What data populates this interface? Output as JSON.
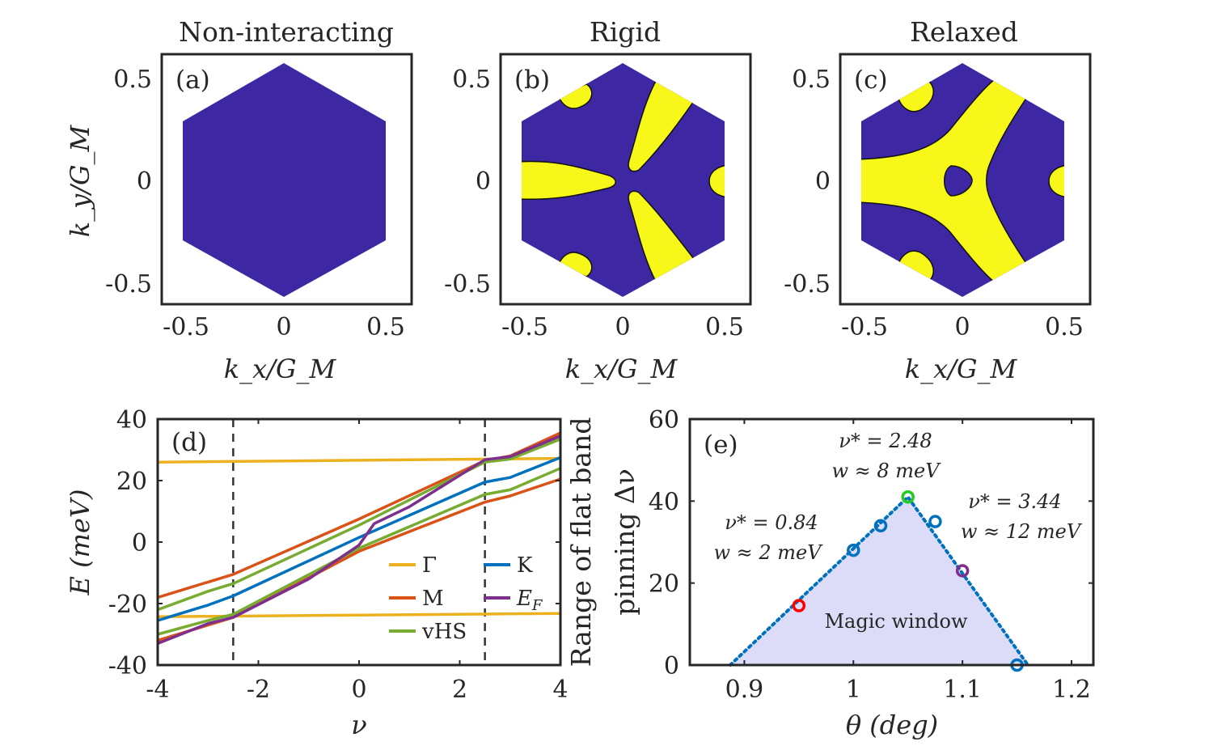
{
  "figure": {
    "panels_top": [
      {
        "id": "a",
        "title": "Non-interacting",
        "label": "(a)"
      },
      {
        "id": "b",
        "title": "Rigid",
        "label": "(b)"
      },
      {
        "id": "c",
        "title": "Relaxed",
        "label": "(c)"
      }
    ],
    "top_axes": {
      "ylabel": "k_y/G_M",
      "xlabel": "k_x/G_M",
      "xticks": [
        "-0.5",
        "0",
        "0.5"
      ],
      "yticks": [
        "0.5",
        "0",
        "-0.5"
      ],
      "fill_colors": {
        "region": "#3d27a3",
        "pocket": "#f7f71a"
      }
    }
  },
  "chart_data": [
    {
      "panel": "d",
      "label": "(d)",
      "type": "line",
      "xlabel": "ν",
      "ylabel": "E (meV)",
      "xlim": [
        -4,
        4
      ],
      "ylim": [
        -40,
        40
      ],
      "xticks": [
        "-4",
        "-2",
        "0",
        "2",
        "4"
      ],
      "yticks": [
        "40",
        "20",
        "0",
        "-20",
        "-40"
      ],
      "vlines": [
        -2.5,
        2.5
      ],
      "series": [
        {
          "name": "Γ",
          "color": "#edb120",
          "x": [
            -4,
            4
          ],
          "y": [
            26,
            27.2
          ]
        },
        {
          "name": "Γ",
          "color": "#edb120",
          "x": [
            -4,
            4
          ],
          "y": [
            -24.3,
            -23.2
          ]
        },
        {
          "name": "M",
          "color": "#d95319",
          "x": [
            -4,
            -3,
            -2.5,
            0,
            2.5,
            3,
            4
          ],
          "y": [
            -18,
            -13,
            -10.5,
            7.5,
            26.5,
            28,
            35.5
          ]
        },
        {
          "name": "M",
          "color": "#d95319",
          "x": [
            -4,
            -3,
            -2.5,
            0,
            2.5,
            3,
            4
          ],
          "y": [
            -32,
            -27,
            -24.5,
            -3,
            13,
            15,
            20.5
          ]
        },
        {
          "name": "vHS",
          "color": "#77ac30",
          "x": [
            -4,
            -3,
            -2.5,
            0,
            2.5,
            3,
            4
          ],
          "y": [
            -22,
            -16,
            -13.5,
            5.5,
            26,
            27,
            33.5
          ]
        },
        {
          "name": "vHS",
          "color": "#77ac30",
          "x": [
            -4,
            -3,
            -2.5,
            0,
            2.5,
            3,
            4
          ],
          "y": [
            -30,
            -25.5,
            -23.5,
            -2,
            15.5,
            17,
            24
          ]
        },
        {
          "name": "K",
          "color": "#0072bd",
          "x": [
            -4,
            -3,
            -2.5,
            0,
            2.5,
            3,
            4
          ],
          "y": [
            -25.5,
            -20.5,
            -17.5,
            1.5,
            19.5,
            21,
            27.5
          ]
        },
        {
          "name": "E_F",
          "color": "#7e2f8e",
          "x": [
            -4,
            -3,
            -2.5,
            -1,
            0,
            0.3,
            1,
            2.5,
            3,
            4
          ],
          "y": [
            -33,
            -26.5,
            -24.5,
            -12,
            -1,
            6,
            11.5,
            26.8,
            27.8,
            34.5
          ]
        }
      ],
      "legend": [
        {
          "name": "Γ",
          "color": "#edb120"
        },
        {
          "name": "K",
          "color": "#0072bd"
        },
        {
          "name": "M",
          "color": "#d95319"
        },
        {
          "name": "E",
          "sub": "F",
          "color": "#7e2f8e"
        },
        {
          "name": "vHS",
          "color": "#77ac30"
        }
      ]
    },
    {
      "panel": "e",
      "label": "(e)",
      "type": "scatter",
      "xlabel": "θ (deg)",
      "ylabel_line1": "Range of flat band",
      "ylabel_line2": "pinning Δν",
      "xlim": [
        0.85,
        1.22
      ],
      "ylim": [
        0,
        60
      ],
      "xticks": [
        "0.9",
        "1",
        "1.1",
        "1.2"
      ],
      "yticks": [
        "60",
        "40",
        "20",
        "0"
      ],
      "points": [
        {
          "x": 0.95,
          "y": 14.5,
          "color": "#ff0000"
        },
        {
          "x": 1.0,
          "y": 28,
          "color": "#0072bd"
        },
        {
          "x": 1.025,
          "y": 34,
          "color": "#0072bd"
        },
        {
          "x": 1.05,
          "y": 41,
          "color": "#22cc22"
        },
        {
          "x": 1.075,
          "y": 35,
          "color": "#0072bd"
        },
        {
          "x": 1.1,
          "y": 23,
          "color": "#7e2f8e"
        },
        {
          "x": 1.15,
          "y": 0,
          "color": "#0072bd"
        }
      ],
      "window": [
        [
          0.887,
          0
        ],
        [
          1.05,
          41
        ],
        [
          1.16,
          0
        ]
      ],
      "window_fill": "#dcdcf8",
      "window_line": "#0072bd",
      "window_label": "Magic window",
      "window_label_color": "#1a1aff",
      "annotations": [
        {
          "line1": "ν* = 2.48",
          "line2": "w ≈ 8 meV",
          "color": "#22cc22"
        },
        {
          "line1": "ν* = 0.84",
          "line2": "w ≈ 2 meV",
          "color": "#ff0000"
        },
        {
          "line1": "ν* = 3.44",
          "line2": "w ≈ 12 meV",
          "color": "#7e2f8e"
        }
      ]
    }
  ]
}
